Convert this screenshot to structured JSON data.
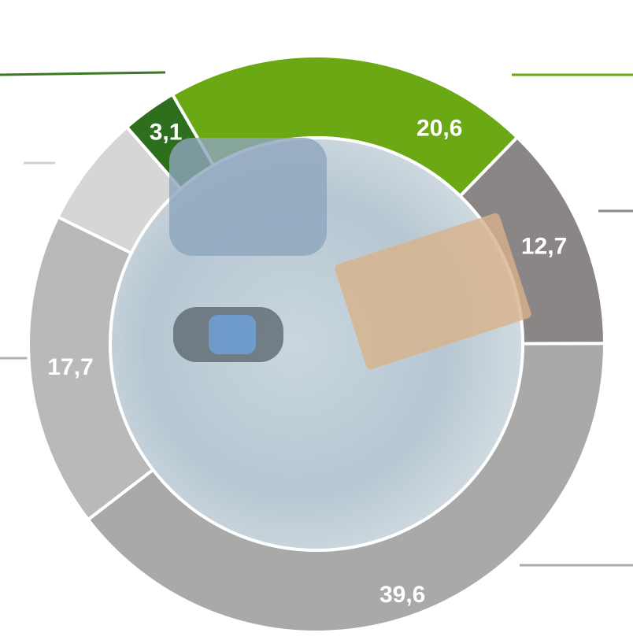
{
  "chart_data": {
    "type": "pie",
    "values": [
      20.6,
      12.7,
      39.6,
      17.7,
      6.3,
      3.1
    ],
    "value_labels": [
      "20,6",
      "12,7",
      "39,6",
      "17,7",
      null,
      "3,1"
    ],
    "colors": [
      "#6aa914",
      "#8b8686",
      "#a9a9a9",
      "#b9b9b9",
      "#d6d6d6",
      "#2e6f1e"
    ]
  }
}
